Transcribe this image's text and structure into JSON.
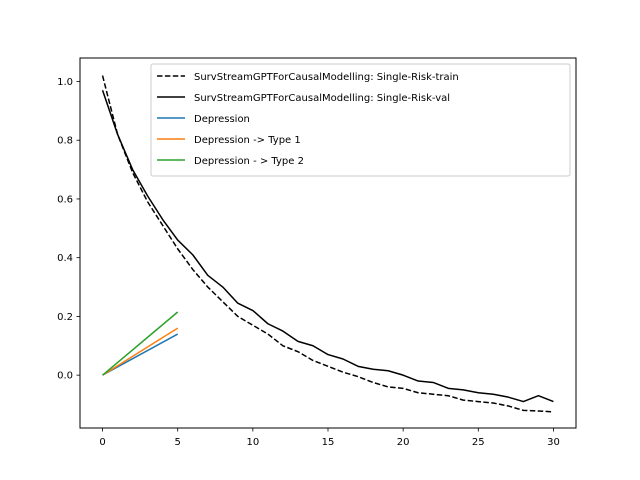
{
  "chart_data": {
    "type": "line",
    "title": "",
    "xlabel": "",
    "ylabel": "",
    "xlim": [
      -1.5,
      31.5
    ],
    "ylim": [
      -0.18,
      1.08
    ],
    "xticks": [
      0,
      5,
      10,
      15,
      20,
      25,
      30
    ],
    "yticks": [
      0.0,
      0.2,
      0.4,
      0.6,
      0.8,
      1.0
    ],
    "xtick_labels": [
      "0",
      "5",
      "10",
      "15",
      "20",
      "25",
      "30"
    ],
    "ytick_labels": [
      "0.0",
      "0.2",
      "0.4",
      "0.6",
      "0.8",
      "1.0"
    ],
    "grid": false,
    "legend_position": "top-right",
    "series": [
      {
        "name": "SurvStreamGPTForCausalModelling: Single-Risk-train",
        "color": "#000000",
        "style": "dashed",
        "x": [
          0,
          1,
          2,
          3,
          4,
          5,
          6,
          7,
          8,
          9,
          10,
          11,
          12,
          13,
          14,
          15,
          16,
          17,
          18,
          19,
          20,
          21,
          22,
          23,
          24,
          25,
          26,
          27,
          28,
          29,
          30
        ],
        "y": [
          1.02,
          0.82,
          0.69,
          0.59,
          0.51,
          0.43,
          0.36,
          0.3,
          0.25,
          0.2,
          0.17,
          0.14,
          0.1,
          0.08,
          0.05,
          0.03,
          0.01,
          -0.005,
          -0.025,
          -0.04,
          -0.045,
          -0.06,
          -0.065,
          -0.07,
          -0.085,
          -0.09,
          -0.095,
          -0.105,
          -0.12,
          -0.122,
          -0.125
        ]
      },
      {
        "name": "SurvStreamGPTForCausalModelling: Single-Risk-val",
        "color": "#000000",
        "style": "solid",
        "x": [
          0,
          1,
          2,
          3,
          4,
          5,
          6,
          7,
          8,
          9,
          10,
          11,
          12,
          13,
          14,
          15,
          16,
          17,
          18,
          19,
          20,
          21,
          22,
          23,
          24,
          25,
          26,
          27,
          28,
          29,
          30
        ],
        "y": [
          0.97,
          0.82,
          0.7,
          0.61,
          0.53,
          0.46,
          0.41,
          0.34,
          0.3,
          0.245,
          0.22,
          0.175,
          0.15,
          0.115,
          0.1,
          0.07,
          0.055,
          0.03,
          0.02,
          0.015,
          0.0,
          -0.02,
          -0.025,
          -0.045,
          -0.05,
          -0.06,
          -0.065,
          -0.075,
          -0.09,
          -0.07,
          -0.09
        ]
      },
      {
        "name": "Depression",
        "color": "#1f77b4",
        "style": "solid",
        "x": [
          0,
          5
        ],
        "y": [
          0.0,
          0.14
        ]
      },
      {
        "name": "Depression -> Type 1",
        "color": "#ff7f0e",
        "style": "solid",
        "x": [
          0,
          5
        ],
        "y": [
          0.0,
          0.16
        ]
      },
      {
        "name": "Depression - > Type 2",
        "color": "#2ca02c",
        "style": "solid",
        "x": [
          0,
          5
        ],
        "y": [
          0.0,
          0.215
        ]
      }
    ]
  }
}
